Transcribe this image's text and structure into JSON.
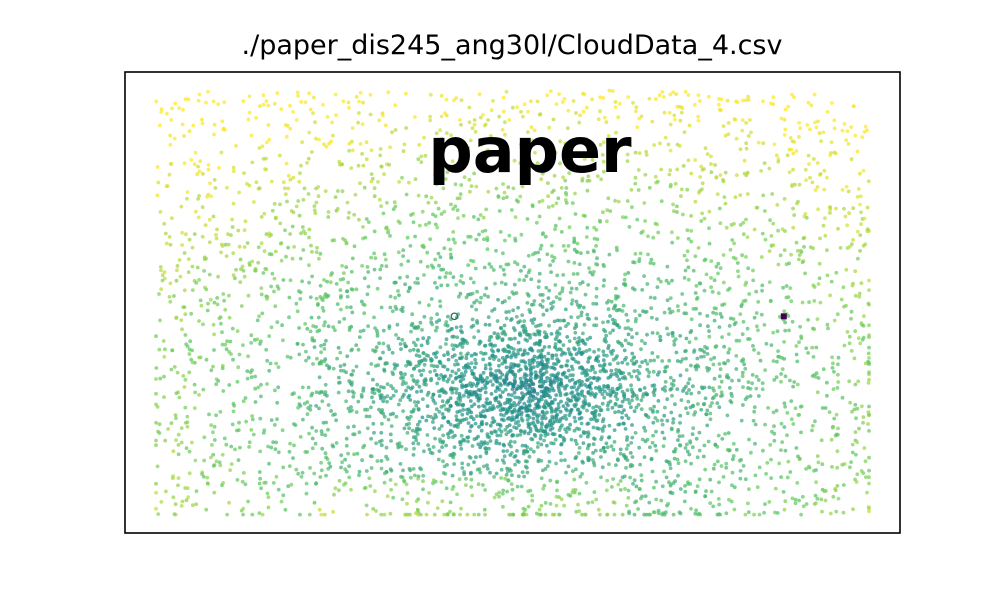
{
  "chart_data": {
    "type": "scatter",
    "title": "./paper_dis245_ang30l/CloudData_4.csv",
    "annotation": "paper",
    "xlabel": "",
    "ylabel": "",
    "axes_ticks_visible": false,
    "grid": false,
    "colormap": "viridis",
    "colors": {
      "low": "#440154",
      "mid": "#21918c",
      "high": "#fde725"
    },
    "cloud": {
      "point_count": 4800,
      "x_range": [
        0.04,
        0.96
      ],
      "y_range": [
        0.04,
        0.96
      ],
      "density_center": [
        0.52,
        0.31
      ],
      "description_of_distribution": "dense teal cluster lower-center, sparser yellow-green points near edges"
    },
    "markers": [
      {
        "name": "reference-point",
        "x": 0.425,
        "y": 0.47,
        "color": "#2a6f5a",
        "style": "hollow-circle"
      },
      {
        "name": "origin-point",
        "x": 0.85,
        "y": 0.47,
        "color": "#440154",
        "style": "filled-square"
      }
    ]
  }
}
